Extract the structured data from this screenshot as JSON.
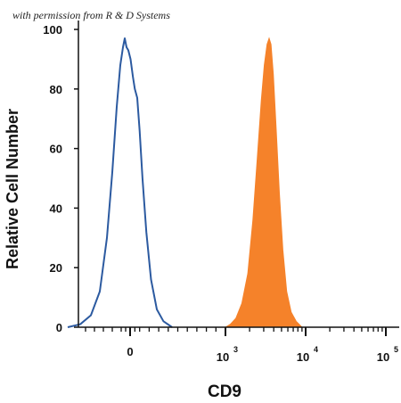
{
  "watermark": "with permission from R & D Systems",
  "chart_data": {
    "type": "area",
    "xlabel": "CD9",
    "ylabel": "Relative Cell Number",
    "x_scale": "biexponential",
    "x_ticks": [
      {
        "value": 0,
        "label": "0"
      },
      {
        "value": 1000,
        "base": "10",
        "exp": "3"
      },
      {
        "value": 10000,
        "base": "10",
        "exp": "4"
      },
      {
        "value": 100000,
        "base": "10",
        "exp": "5"
      }
    ],
    "ylim": [
      0,
      100
    ],
    "y_ticks": [
      0,
      20,
      40,
      60,
      80,
      100
    ],
    "grid": false,
    "series": [
      {
        "style": "outline",
        "color": "#2c5aa0",
        "points": [
          [
            -700,
            0
          ],
          [
            -560,
            1
          ],
          [
            -440,
            4
          ],
          [
            -340,
            12
          ],
          [
            -260,
            30
          ],
          [
            -200,
            52
          ],
          [
            -150,
            74
          ],
          [
            -110,
            88
          ],
          [
            -80,
            94
          ],
          [
            -60,
            97
          ],
          [
            -40,
            94
          ],
          [
            -20,
            93
          ],
          [
            5,
            90
          ],
          [
            30,
            84
          ],
          [
            50,
            80
          ],
          [
            75,
            77
          ],
          [
            100,
            66
          ],
          [
            130,
            50
          ],
          [
            170,
            32
          ],
          [
            220,
            16
          ],
          [
            280,
            6
          ],
          [
            350,
            2
          ],
          [
            440,
            0
          ]
        ]
      },
      {
        "style": "filled",
        "color": "#f5822a",
        "points": [
          [
            1000,
            0
          ],
          [
            1150,
            1
          ],
          [
            1350,
            3
          ],
          [
            1600,
            8
          ],
          [
            1900,
            18
          ],
          [
            2200,
            36
          ],
          [
            2500,
            57
          ],
          [
            2800,
            76
          ],
          [
            3050,
            88
          ],
          [
            3300,
            95
          ],
          [
            3500,
            97
          ],
          [
            3700,
            95
          ],
          [
            3950,
            85
          ],
          [
            4300,
            66
          ],
          [
            4700,
            45
          ],
          [
            5200,
            26
          ],
          [
            5800,
            12
          ],
          [
            6600,
            5
          ],
          [
            7600,
            2
          ],
          [
            9000,
            0
          ]
        ]
      }
    ]
  }
}
